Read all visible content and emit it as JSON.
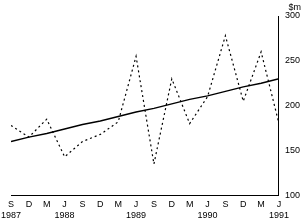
{
  "chart_data": {
    "type": "line",
    "y_label": "$m",
    "categories": [
      [
        "S",
        "1987"
      ],
      "D",
      "M",
      [
        "J",
        "1988"
      ],
      "S",
      "D",
      "M",
      [
        "J",
        "1989"
      ],
      "S",
      "D",
      "M",
      [
        "J",
        "1990"
      ],
      "S",
      "D",
      "M",
      [
        "J",
        "1991"
      ]
    ],
    "series": [
      {
        "color": "#000000",
        "line_style": "dotted",
        "values": [
          178,
          165,
          185,
          143,
          160,
          168,
          182,
          255,
          135,
          230,
          180,
          210,
          278,
          205,
          260,
          180
        ]
      },
      {
        "color": "#000000",
        "line_style": "solid",
        "values": [
          160,
          165,
          169,
          174,
          179,
          183,
          188,
          193,
          197,
          202,
          207,
          211,
          216,
          221,
          225,
          230
        ]
      }
    ],
    "ylim": [
      100,
      300
    ],
    "yticks": [
      100,
      150,
      200,
      250,
      300
    ],
    "grid": false
  }
}
